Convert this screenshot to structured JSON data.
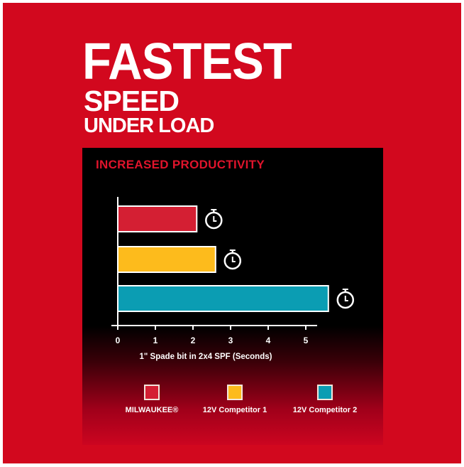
{
  "headline": {
    "line1": "FASTEST",
    "line2": "SPEED",
    "line3": "UNDER LOAD"
  },
  "chart_data": {
    "type": "bar",
    "orientation": "horizontal",
    "title": "INCREASED PRODUCTIVITY",
    "xlabel": "1\" Spade bit in 2x4 SPF (Seconds)",
    "xlim": [
      0,
      5.5
    ],
    "xticks": [
      "0",
      "1",
      "2",
      "3",
      "4",
      "5"
    ],
    "grid": false,
    "legend_position": "bottom",
    "icon": "stopwatch-icon",
    "series": [
      {
        "name": "MILWAUKEE®",
        "value": 2.1,
        "color": "#d41f33"
      },
      {
        "name": "12V Competitor 1",
        "value": 2.6,
        "color": "#fdbb1c"
      },
      {
        "name": "12V Competitor 2",
        "value": 5.6,
        "color": "#0b9db3"
      }
    ]
  }
}
